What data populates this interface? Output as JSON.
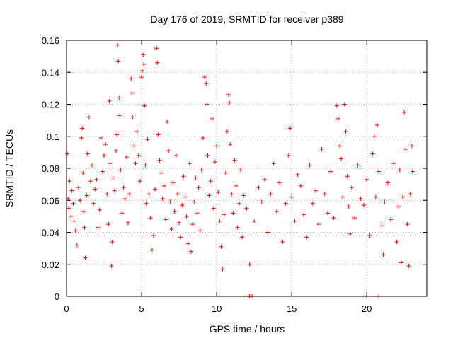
{
  "chart_data": {
    "type": "scatter",
    "title": "Day 176 of 2019, SRMTID for receiver p389",
    "xlabel": "GPS time / hours",
    "ylabel": "SRMTID / TECUs",
    "xlim": [
      0,
      24
    ],
    "ylim": [
      0,
      0.16
    ],
    "xticks": [
      0,
      5,
      10,
      15,
      20
    ],
    "xtick_labels": [
      "0",
      "5",
      "10",
      "15",
      "20"
    ],
    "yticks": [
      0,
      0.02,
      0.04,
      0.06,
      0.08,
      0.1,
      0.12,
      0.14,
      0.16
    ],
    "ytick_labels": [
      "0",
      "0.02",
      "0.04",
      "0.06",
      "0.08",
      "0.1",
      "0.12",
      "0.14",
      "0.16"
    ],
    "grid": true,
    "marker": "+",
    "color": "#ff0000",
    "series": [
      {
        "name": "SRMTID",
        "points": [
          [
            0.05,
            0.089
          ],
          [
            0.1,
            0.061
          ],
          [
            0.15,
            0.055
          ],
          [
            0.2,
            0.072
          ],
          [
            0.3,
            0.05
          ],
          [
            0.35,
            0.066
          ],
          [
            0.45,
            0.058
          ],
          [
            0.5,
            0.047
          ],
          [
            0.6,
            0.041
          ],
          [
            0.7,
            0.032
          ],
          [
            0.8,
            0.068
          ],
          [
            0.9,
            0.06
          ],
          [
            1.0,
            0.099
          ],
          [
            1.05,
            0.105
          ],
          [
            1.1,
            0.077
          ],
          [
            1.15,
            0.053
          ],
          [
            1.2,
            0.043
          ],
          [
            1.25,
            0.024
          ],
          [
            1.35,
            0.063
          ],
          [
            1.4,
            0.089
          ],
          [
            1.5,
            0.112
          ],
          [
            1.6,
            0.072
          ],
          [
            1.7,
            0.082
          ],
          [
            1.8,
            0.058
          ],
          [
            1.9,
            0.067
          ],
          [
            2.0,
            0.073
          ],
          [
            2.1,
            0.043
          ],
          [
            2.2,
            0.054
          ],
          [
            2.3,
            0.099
          ],
          [
            2.4,
            0.078
          ],
          [
            2.5,
            0.088
          ],
          [
            2.6,
            0.095
          ],
          [
            2.7,
            0.064
          ],
          [
            2.8,
            0.045
          ],
          [
            2.85,
            0.122
          ],
          [
            2.9,
            0.083
          ],
          [
            3.0,
            0.019
          ],
          [
            3.05,
            0.034
          ],
          [
            3.1,
            0.074
          ],
          [
            3.2,
            0.066
          ],
          [
            3.3,
            0.091
          ],
          [
            3.35,
            0.101
          ],
          [
            3.4,
            0.157
          ],
          [
            3.45,
            0.147
          ],
          [
            3.5,
            0.124
          ],
          [
            3.55,
            0.113
          ],
          [
            3.6,
            0.079
          ],
          [
            3.7,
            0.052
          ],
          [
            3.8,
            0.068
          ],
          [
            3.9,
            0.061
          ],
          [
            4.0,
            0.087
          ],
          [
            4.1,
            0.046
          ],
          [
            4.2,
            0.064
          ],
          [
            4.3,
            0.136
          ],
          [
            4.35,
            0.127
          ],
          [
            4.4,
            0.112
          ],
          [
            4.5,
            0.094
          ],
          [
            4.6,
            0.083
          ],
          [
            4.7,
            0.103
          ],
          [
            4.8,
            0.088
          ],
          [
            4.9,
            0.072
          ],
          [
            5.0,
            0.137
          ],
          [
            5.05,
            0.141
          ],
          [
            5.1,
            0.151
          ],
          [
            5.15,
            0.145
          ],
          [
            5.2,
            0.119
          ],
          [
            5.25,
            0.082
          ],
          [
            5.3,
            0.058
          ],
          [
            5.4,
            0.098
          ],
          [
            5.5,
            0.064
          ],
          [
            5.6,
            0.049
          ],
          [
            5.7,
            0.029
          ],
          [
            5.8,
            0.038
          ],
          [
            5.9,
            0.067
          ],
          [
            6.0,
            0.155
          ],
          [
            6.05,
            0.146
          ],
          [
            6.1,
            0.101
          ],
          [
            6.2,
            0.085
          ],
          [
            6.3,
            0.077
          ],
          [
            6.4,
            0.061
          ],
          [
            6.5,
            0.069
          ],
          [
            6.6,
            0.048
          ],
          [
            6.7,
            0.109
          ],
          [
            6.8,
            0.091
          ],
          [
            6.9,
            0.059
          ],
          [
            7.0,
            0.042
          ],
          [
            7.1,
            0.071
          ],
          [
            7.2,
            0.053
          ],
          [
            7.3,
            0.088
          ],
          [
            7.4,
            0.064
          ],
          [
            7.5,
            0.046
          ],
          [
            7.6,
            0.037
          ],
          [
            7.7,
            0.057
          ],
          [
            7.8,
            0.075
          ],
          [
            7.9,
            0.062
          ],
          [
            8.0,
            0.05
          ],
          [
            8.1,
            0.033
          ],
          [
            8.2,
            0.083
          ],
          [
            8.3,
            0.028
          ],
          [
            8.4,
            0.045
          ],
          [
            8.5,
            0.059
          ],
          [
            8.6,
            0.074
          ],
          [
            8.7,
            0.052
          ],
          [
            8.8,
            0.068
          ],
          [
            8.9,
            0.041
          ],
          [
            9.0,
            0.079
          ],
          [
            9.1,
            0.099
          ],
          [
            9.2,
            0.137
          ],
          [
            9.3,
            0.133
          ],
          [
            9.35,
            0.12
          ],
          [
            9.4,
            0.088
          ],
          [
            9.5,
            0.063
          ],
          [
            9.6,
            0.072
          ],
          [
            9.7,
            0.111
          ],
          [
            9.8,
            0.055
          ],
          [
            9.9,
            0.084
          ],
          [
            10.0,
            0.094
          ],
          [
            10.1,
            0.065
          ],
          [
            10.2,
            0.047
          ],
          [
            10.3,
            0.031
          ],
          [
            10.4,
            0.017
          ],
          [
            10.5,
            0.051
          ],
          [
            10.6,
            0.077
          ],
          [
            10.7,
            0.103
          ],
          [
            10.8,
            0.126
          ],
          [
            10.85,
            0.121
          ],
          [
            10.9,
            0.095
          ],
          [
            11.0,
            0.064
          ],
          [
            11.1,
            0.052
          ],
          [
            11.2,
            0.085
          ],
          [
            11.3,
            0.069
          ],
          [
            11.4,
            0.043
          ],
          [
            11.5,
            0.058
          ],
          [
            11.6,
            0.079
          ],
          [
            11.7,
            0.037
          ],
          [
            11.8,
            0.063
          ],
          [
            12.0,
            0.055
          ],
          [
            12.2,
            0.02
          ],
          [
            12.5,
            0.047
          ],
          [
            12.8,
            0.068
          ],
          [
            13.0,
            0.059
          ],
          [
            13.2,
            0.073
          ],
          [
            13.4,
            0.04
          ],
          [
            13.6,
            0.064
          ],
          [
            13.8,
            0.083
          ],
          [
            14.0,
            0.053
          ],
          [
            14.2,
            0.071
          ],
          [
            14.4,
            0.034
          ],
          [
            14.6,
            0.058
          ],
          [
            14.8,
            0.088
          ],
          [
            14.9,
            0.105
          ],
          [
            15.0,
            0.062
          ],
          [
            15.2,
            0.047
          ],
          [
            15.4,
            0.076
          ],
          [
            15.6,
            0.069
          ],
          [
            15.8,
            0.051
          ],
          [
            16.0,
            0.037
          ],
          [
            16.2,
            0.082
          ],
          [
            16.4,
            0.058
          ],
          [
            16.6,
            0.066
          ],
          [
            16.8,
            0.045
          ],
          [
            17.0,
            0.092
          ],
          [
            17.2,
            0.064
          ],
          [
            17.4,
            0.052
          ],
          [
            17.6,
            0.078
          ],
          [
            17.8,
            0.049
          ],
          [
            18.0,
            0.119
          ],
          [
            18.1,
            0.111
          ],
          [
            18.2,
            0.094
          ],
          [
            18.3,
            0.086
          ],
          [
            18.4,
            0.062
          ],
          [
            18.5,
            0.12
          ],
          [
            18.6,
            0.103
          ],
          [
            18.7,
            0.075
          ],
          [
            18.8,
            0.056
          ],
          [
            18.9,
            0.039
          ],
          [
            19.0,
            0.068
          ],
          [
            19.2,
            0.049
          ],
          [
            19.4,
            0.082
          ],
          [
            19.6,
            0.061
          ],
          [
            19.8,
            0.057
          ],
          [
            20.0,
            0.073
          ],
          [
            20.2,
            0.038
          ],
          [
            20.4,
            0.089
          ],
          [
            20.5,
            0.1
          ],
          [
            20.6,
            0.062
          ],
          [
            20.7,
            0.107
          ],
          [
            20.8,
            0.078
          ],
          [
            21.0,
            0.044
          ],
          [
            21.1,
            0.026
          ],
          [
            21.2,
            0.059
          ],
          [
            21.4,
            0.071
          ],
          [
            21.6,
            0.048
          ],
          [
            21.8,
            0.083
          ],
          [
            22.0,
            0.034
          ],
          [
            22.1,
            0.056
          ],
          [
            22.2,
            0.079
          ],
          [
            22.3,
            0.021
          ],
          [
            22.4,
            0.062
          ],
          [
            22.5,
            0.115
          ],
          [
            22.6,
            0.092
          ],
          [
            22.7,
            0.045
          ],
          [
            22.8,
            0.019
          ],
          [
            22.9,
            0.064
          ],
          [
            23.0,
            0.094
          ],
          [
            23.05,
            0.078
          ],
          [
            12.1,
            0.0
          ],
          [
            12.2,
            0.0
          ],
          [
            12.3,
            0.0
          ],
          [
            12.4,
            0.0
          ],
          [
            20.0,
            0.0
          ],
          [
            20.8,
            0.0
          ]
        ]
      }
    ]
  }
}
